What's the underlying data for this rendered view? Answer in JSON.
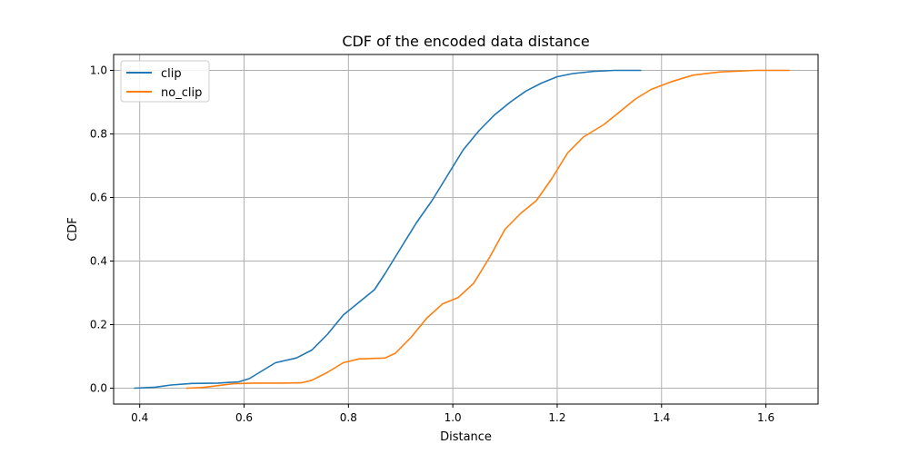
{
  "chart_data": {
    "type": "line",
    "title": "CDF of the encoded data distance",
    "xlabel": "Distance",
    "ylabel": "CDF",
    "xlim": [
      0.35,
      1.7
    ],
    "ylim": [
      -0.05,
      1.05
    ],
    "xticks": [
      0.4,
      0.6,
      0.8,
      1.0,
      1.2,
      1.4,
      1.6
    ],
    "xtick_labels": [
      "0.4",
      "0.6",
      "0.8",
      "1.0",
      "1.2",
      "1.4",
      "1.6"
    ],
    "yticks": [
      0.0,
      0.2,
      0.4,
      0.6,
      0.8,
      1.0
    ],
    "ytick_labels": [
      "0.0",
      "0.2",
      "0.4",
      "0.6",
      "0.8",
      "1.0"
    ],
    "grid": true,
    "legend": "upper-left",
    "series": [
      {
        "name": "clip",
        "color": "#1f77b4",
        "x": [
          0.39,
          0.43,
          0.46,
          0.5,
          0.55,
          0.59,
          0.61,
          0.63,
          0.66,
          0.7,
          0.73,
          0.76,
          0.79,
          0.82,
          0.85,
          0.87,
          0.9,
          0.93,
          0.96,
          0.99,
          1.02,
          1.05,
          1.08,
          1.11,
          1.14,
          1.17,
          1.2,
          1.23,
          1.27,
          1.31,
          1.36
        ],
        "y": [
          0.0,
          0.003,
          0.01,
          0.015,
          0.016,
          0.02,
          0.03,
          0.05,
          0.08,
          0.095,
          0.12,
          0.17,
          0.23,
          0.27,
          0.31,
          0.36,
          0.44,
          0.52,
          0.59,
          0.67,
          0.75,
          0.81,
          0.86,
          0.9,
          0.935,
          0.96,
          0.98,
          0.99,
          0.997,
          1.0,
          1.0
        ]
      },
      {
        "name": "no_clip",
        "color": "#ff7f0e",
        "x": [
          0.49,
          0.52,
          0.55,
          0.58,
          0.62,
          0.67,
          0.71,
          0.73,
          0.76,
          0.79,
          0.82,
          0.87,
          0.89,
          0.92,
          0.95,
          0.98,
          1.01,
          1.04,
          1.07,
          1.1,
          1.13,
          1.16,
          1.19,
          1.22,
          1.25,
          1.29,
          1.32,
          1.35,
          1.38,
          1.42,
          1.46,
          1.51,
          1.58,
          1.645
        ],
        "y": [
          0.0,
          0.002,
          0.008,
          0.014,
          0.016,
          0.016,
          0.017,
          0.025,
          0.05,
          0.08,
          0.092,
          0.095,
          0.11,
          0.16,
          0.22,
          0.265,
          0.285,
          0.33,
          0.41,
          0.5,
          0.55,
          0.59,
          0.66,
          0.74,
          0.79,
          0.83,
          0.87,
          0.91,
          0.94,
          0.965,
          0.985,
          0.995,
          1.0,
          1.0
        ]
      }
    ]
  }
}
